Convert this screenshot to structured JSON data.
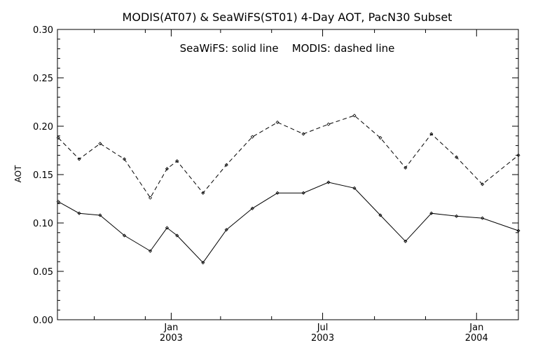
{
  "chart_data": {
    "type": "line",
    "title": "MODIS(AT07) & SeaWiFS(ST01) 4-Day AOT, PacN30 Subset",
    "annotation": "SeaWiFS: solid line    MODIS: dashed line",
    "ylabel": "AOT",
    "ylim": [
      0.0,
      0.3
    ],
    "xlim": [
      "2002-08-18",
      "2004-02-20"
    ],
    "y_ticks": [
      "0.00",
      "0.05",
      "0.10",
      "0.15",
      "0.20",
      "0.25",
      "0.30"
    ],
    "y_tick_values": [
      0.0,
      0.05,
      0.1,
      0.15,
      0.2,
      0.25,
      0.3
    ],
    "x_major_ticks": [
      {
        "date": "2003-01-01",
        "label_top": "Jan",
        "label_bottom": "2003"
      },
      {
        "date": "2003-07-01",
        "label_top": "Jul",
        "label_bottom": "2003"
      },
      {
        "date": "2004-01-01",
        "label_top": "Jan",
        "label_bottom": "2004"
      }
    ],
    "x_minor_ticks": [
      "2002-10-01",
      "2002-12-01",
      "2003-03-01",
      "2003-05-01",
      "2003-09-01",
      "2003-11-01"
    ],
    "series": [
      {
        "style": "solid",
        "color": "#000000",
        "x": [
          "2002-08-19",
          "2002-09-13",
          "2002-10-08",
          "2002-11-06",
          "2002-12-07",
          "2002-12-27",
          "2003-01-08",
          "2003-02-08",
          "2003-03-08",
          "2003-04-08",
          "2003-05-08",
          "2003-06-08",
          "2003-07-08",
          "2003-08-08",
          "2003-09-08",
          "2003-10-08",
          "2003-11-08",
          "2003-12-08",
          "2004-01-08",
          "2004-02-20"
        ],
        "values": [
          0.122,
          0.11,
          0.108,
          0.087,
          0.071,
          0.095,
          0.087,
          0.059,
          0.093,
          0.115,
          0.131,
          0.131,
          0.142,
          0.136,
          0.108,
          0.081,
          0.11,
          0.107,
          0.105,
          0.092
        ]
      },
      {
        "style": "dashed",
        "color": "#000000",
        "x": [
          "2002-08-19",
          "2002-09-13",
          "2002-10-08",
          "2002-11-06",
          "2002-12-07",
          "2002-12-27",
          "2003-01-08",
          "2003-02-08",
          "2003-03-08",
          "2003-04-08",
          "2003-05-08",
          "2003-06-08",
          "2003-07-08",
          "2003-08-08",
          "2003-09-08",
          "2003-10-08",
          "2003-11-08",
          "2003-12-08",
          "2004-01-08",
          "2004-02-20"
        ],
        "values": [
          0.188,
          0.166,
          0.182,
          0.166,
          0.126,
          0.156,
          0.164,
          0.131,
          0.16,
          0.189,
          0.204,
          0.192,
          0.202,
          0.211,
          0.188,
          0.157,
          0.192,
          0.168,
          0.14,
          0.17
        ]
      }
    ]
  }
}
